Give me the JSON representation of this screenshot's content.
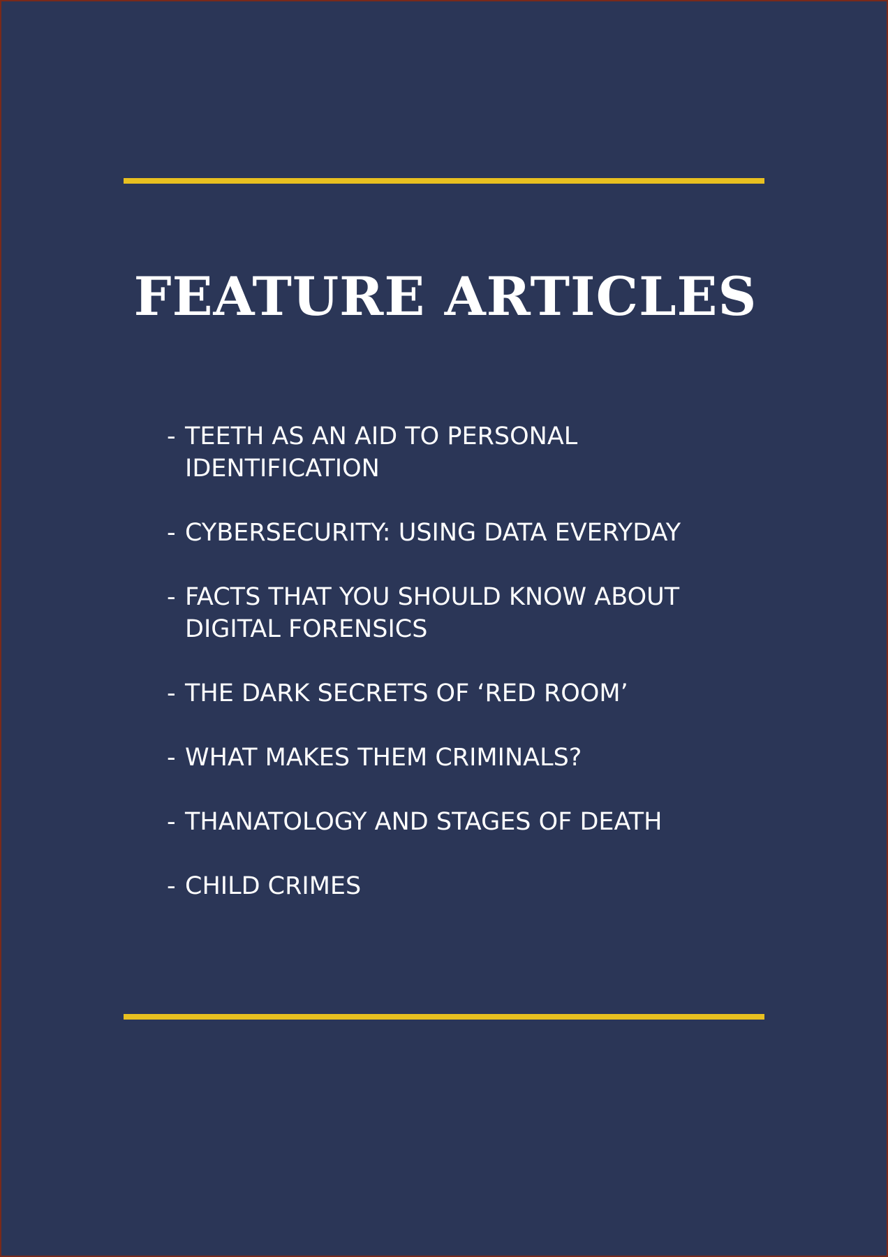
{
  "page": {
    "title": "FEATURE ARTICLES",
    "bullet": "-",
    "articles": [
      {
        "text": "TEETH AS AN AID TO PERSONAL\nIDENTIFICATION"
      },
      {
        "text": "CYBERSECURITY: USING DATA EVERYDAY"
      },
      {
        "text": "FACTS THAT YOU SHOULD KNOW ABOUT\nDIGITAL FORENSICS"
      },
      {
        "text": "THE DARK SECRETS OF ‘RED ROOM’"
      },
      {
        "text": "WHAT MAKES THEM CRIMINALS?"
      },
      {
        "text": "THANATOLOGY AND STAGES OF DEATH"
      },
      {
        "text": "CHILD CRIMES"
      }
    ]
  },
  "colors": {
    "background": "#2b3657",
    "accent_rule": "#e8c020",
    "text": "#ffffff",
    "border": "#7a2a1a"
  }
}
